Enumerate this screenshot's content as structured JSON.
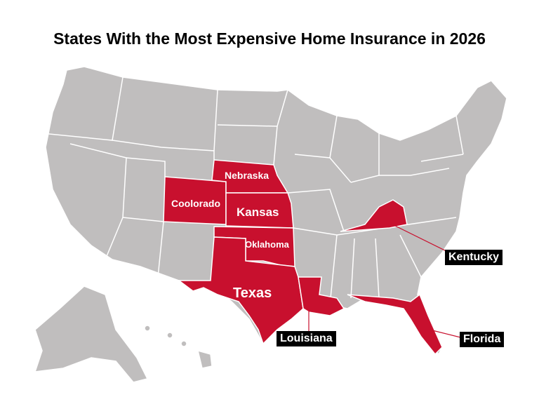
{
  "title": "States With the Most Expensive Home Insurance in 2026",
  "colors": {
    "highlight": "#c8102e",
    "other_states": "#c0bebe",
    "borders": "#ffffff",
    "callout_bg": "#000000"
  },
  "highlighted_states": {
    "nebraska": "Nebraska",
    "colorado": "Coolorado",
    "kansas": "Kansas",
    "oklahoma": "Oklahoma",
    "texas": "Texas",
    "louisiana": "Louisiana",
    "kentucky": "Kentucky",
    "florida": "Florida"
  }
}
